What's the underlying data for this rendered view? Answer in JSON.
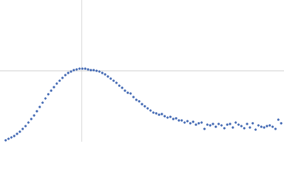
{
  "chart_data": {
    "type": "scatter",
    "color": "#3a62b0",
    "grid": true,
    "xlim": [
      0,
      400
    ],
    "ylim": [
      0,
      200
    ],
    "xticks": [
      115
    ],
    "yticks": [
      100
    ],
    "x": [
      8,
      12,
      16,
      20,
      24,
      28,
      32,
      36,
      40,
      44,
      48,
      52,
      56,
      60,
      64,
      68,
      72,
      76,
      80,
      84,
      88,
      92,
      96,
      100,
      104,
      108,
      112,
      116,
      120,
      124,
      128,
      132,
      136,
      140,
      144,
      148,
      152,
      156,
      160,
      164,
      168,
      172,
      176,
      180,
      184,
      188,
      192,
      196,
      200,
      204,
      208,
      212,
      216,
      220,
      224,
      228,
      232,
      236,
      240,
      244,
      248,
      252,
      256,
      260,
      264,
      268,
      272,
      276,
      280,
      284,
      288,
      292,
      296,
      300,
      304,
      308,
      312,
      316,
      320,
      324,
      328,
      332,
      336,
      340,
      344,
      348,
      352,
      356,
      360,
      364,
      368,
      372,
      376,
      380,
      384,
      388,
      392,
      396
    ],
    "values": [
      2,
      4,
      6,
      8,
      11,
      14,
      18,
      22,
      27,
      32,
      37,
      43,
      49,
      55,
      61,
      67,
      72,
      77,
      82,
      86,
      90,
      94,
      97,
      99,
      101,
      102,
      103,
      103,
      103,
      102,
      101,
      101,
      100,
      99,
      97,
      95,
      92,
      89,
      86,
      83,
      79,
      76,
      72,
      69,
      68,
      63,
      59,
      57,
      53,
      50,
      47,
      44,
      41,
      40,
      38,
      39,
      36,
      34,
      35,
      32,
      33,
      30,
      30,
      27,
      29,
      26,
      28,
      24,
      26,
      27,
      18,
      24,
      23,
      25,
      21,
      25,
      23,
      19,
      24,
      25,
      20,
      27,
      24,
      22,
      19,
      25,
      20,
      26,
      17,
      23,
      21,
      20,
      22,
      23,
      21,
      18,
      31,
      26
    ]
  }
}
